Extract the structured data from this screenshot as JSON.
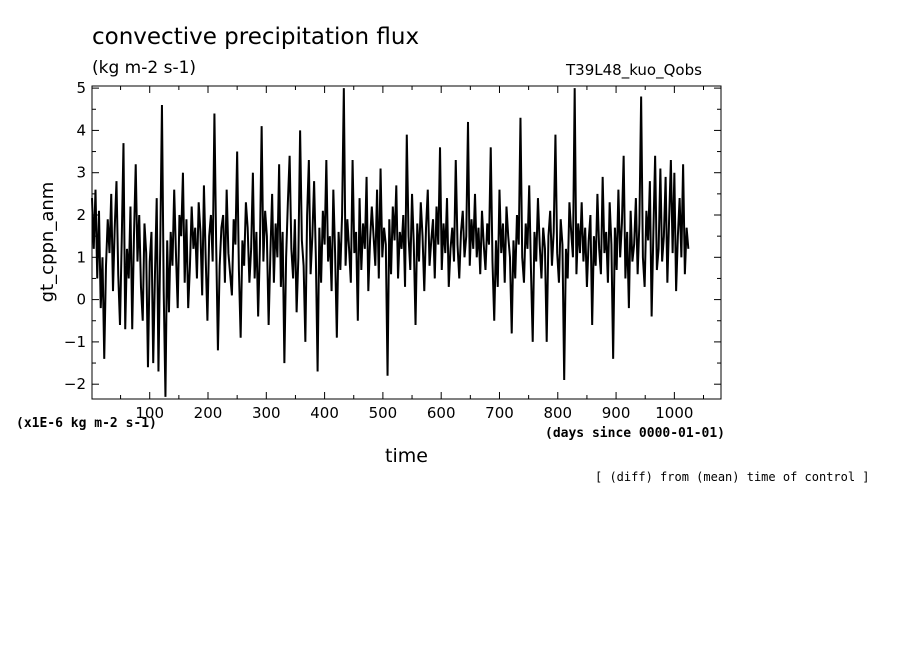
{
  "title": "convective precipitation flux",
  "units": "(kg m-2 s-1)",
  "run_label": "T39L48_kuo_Qobs",
  "scale_label": "(x1E-6 kg m-2 s-1)",
  "x_axis_note": "(days since 0000-01-01)",
  "annotation": "[ (diff) from (mean) time of control ]",
  "chart_data": {
    "type": "line",
    "title": "convective precipitation flux",
    "subtitle": "(kg m-2 s-1)",
    "xlabel": "time",
    "ylabel": "gt_cppn_anm",
    "xlim": [
      1,
      1080
    ],
    "ylim": [
      -2.35,
      5.05
    ],
    "x_ticks": [
      100,
      200,
      300,
      400,
      500,
      600,
      700,
      800,
      900,
      1000
    ],
    "x_tick_labels": [
      "100",
      "200",
      "300",
      "400",
      "500",
      "600",
      "700",
      "800",
      "900",
      "1000"
    ],
    "y_ticks": [
      -2,
      -1,
      0,
      1,
      2,
      3,
      4,
      5
    ],
    "y_tick_labels": [
      "−2",
      "−1",
      "0",
      "1",
      "2",
      "3",
      "4",
      "5"
    ],
    "grid": false,
    "line_color": "#000000",
    "series": [
      {
        "x_start": 1,
        "x_step": 3,
        "values": [
          2.4,
          1.2,
          2.6,
          0.5,
          2.1,
          -0.2,
          1.0,
          -1.4,
          0.8,
          1.9,
          1.1,
          2.5,
          0.2,
          1.7,
          2.8,
          0.6,
          -0.6,
          1.4,
          3.7,
          -0.7,
          1.2,
          0.5,
          2.2,
          -0.7,
          1.5,
          3.2,
          0.9,
          2.0,
          0.3,
          -0.5,
          1.8,
          1.1,
          -1.6,
          0.9,
          1.6,
          -1.5,
          0.6,
          2.4,
          -1.7,
          1.2,
          4.6,
          0.2,
          -2.3,
          1.4,
          -0.3,
          1.6,
          0.8,
          2.6,
          1.1,
          -0.2,
          2.0,
          1.5,
          3.0,
          0.4,
          1.9,
          -0.2,
          0.8,
          2.2,
          1.2,
          1.7,
          0.5,
          2.3,
          1.6,
          0.1,
          2.7,
          1.0,
          -0.5,
          1.5,
          2.0,
          0.9,
          4.4,
          1.3,
          -1.2,
          0.8,
          1.7,
          2.0,
          0.4,
          2.6,
          1.1,
          0.6,
          0.1,
          1.9,
          1.3,
          3.5,
          0.7,
          -0.9,
          1.4,
          0.8,
          2.3,
          1.7,
          0.4,
          1.2,
          3.0,
          0.5,
          1.6,
          -0.4,
          1.2,
          4.1,
          0.9,
          2.1,
          1.5,
          -0.6,
          1.1,
          2.5,
          0.4,
          1.8,
          1.0,
          3.2,
          0.3,
          1.6,
          -1.5,
          1.0,
          2.3,
          3.4,
          1.2,
          0.5,
          1.9,
          -0.3,
          1.0,
          4.0,
          1.4,
          0.8,
          -1.0,
          2.0,
          3.3,
          0.6,
          1.5,
          2.8,
          1.0,
          -1.7,
          1.7,
          0.4,
          2.1,
          1.3,
          3.3,
          0.9,
          1.5,
          0.2,
          2.6,
          1.1,
          -0.9,
          1.6,
          0.7,
          2.0,
          5.0,
          0.8,
          1.9,
          1.2,
          0.4,
          3.3,
          1.1,
          1.6,
          -0.5,
          2.4,
          0.7,
          1.8,
          1.2,
          2.9,
          0.2,
          1.4,
          2.2,
          1.5,
          0.8,
          2.6,
          0.5,
          3.1,
          1.0,
          1.7,
          1.3,
          -1.8,
          1.9,
          0.6,
          2.2,
          1.4,
          2.7,
          0.5,
          1.6,
          1.2,
          2.0,
          0.3,
          3.9,
          1.5,
          0.7,
          2.5,
          1.3,
          -0.6,
          1.8,
          0.9,
          2.3,
          1.5,
          0.2,
          1.7,
          2.6,
          0.8,
          1.4,
          1.9,
          0.5,
          2.2,
          1.3,
          3.6,
          0.7,
          1.8,
          1.1,
          2.4,
          0.3,
          1.2,
          1.7,
          0.9,
          3.3,
          1.3,
          0.5,
          1.6,
          2.1,
          1.0,
          1.5,
          4.2,
          0.8,
          1.9,
          1.2,
          2.5,
          1.0,
          1.7,
          0.6,
          2.1,
          1.3,
          0.7,
          1.8,
          1.3,
          3.6,
          0.9,
          -0.5,
          1.4,
          0.3,
          2.6,
          1.1,
          1.8,
          0.4,
          2.2,
          1.5,
          1.0,
          -0.8,
          1.4,
          0.5,
          2.0,
          1.3,
          4.3,
          1.0,
          0.4,
          1.8,
          1.2,
          2.7,
          0.7,
          -1.0,
          1.6,
          0.9,
          2.4,
          1.3,
          0.5,
          1.7,
          1.2,
          -1.0,
          1.5,
          2.1,
          0.8,
          1.6,
          3.9,
          1.1,
          0.4,
          1.9,
          1.3,
          -1.9,
          1.2,
          0.5,
          2.3,
          1.6,
          1.0,
          5.0,
          0.6,
          1.8,
          1.1,
          2.3,
          0.9,
          1.7,
          0.3,
          1.4,
          2.0,
          -0.6,
          1.5,
          0.8,
          2.5,
          1.2,
          0.6,
          2.9,
          1.1,
          1.6,
          0.4,
          2.3,
          1.3,
          -1.4,
          1.7,
          0.7,
          2.6,
          1.0,
          1.8,
          3.4,
          0.5,
          1.6,
          -0.2,
          2.1,
          0.9,
          1.3,
          2.4,
          0.6,
          1.8,
          4.8,
          1.0,
          0.3,
          2.1,
          1.4,
          2.8,
          -0.4,
          1.6,
          3.4,
          0.7,
          1.2,
          3.1,
          0.9,
          1.5,
          2.9,
          0.4,
          1.9,
          3.3,
          1.1,
          3.0,
          0.2,
          1.5,
          2.4,
          1.0,
          3.2,
          0.6,
          1.7,
          1.2
        ]
      }
    ]
  }
}
